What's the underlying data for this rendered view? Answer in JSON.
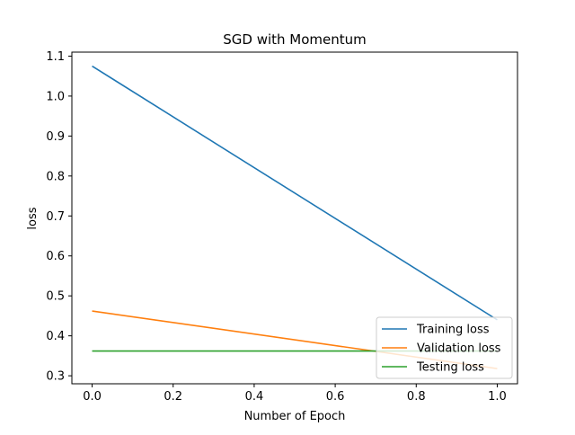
{
  "chart_data": {
    "type": "line",
    "title": "SGD with Momentum",
    "xlabel": "Number of Epoch",
    "ylabel": "loss",
    "xlim": [
      -0.05,
      1.05
    ],
    "ylim": [
      0.28,
      1.11
    ],
    "xticks": [
      0.0,
      0.2,
      0.4,
      0.6,
      0.8,
      1.0
    ],
    "xtick_labels": [
      "0.0",
      "0.2",
      "0.4",
      "0.6",
      "0.8",
      "1.0"
    ],
    "yticks": [
      0.3,
      0.4,
      0.5,
      0.6,
      0.7,
      0.8,
      0.9,
      1.0,
      1.1
    ],
    "ytick_labels": [
      "0.3",
      "0.4",
      "0.5",
      "0.6",
      "0.7",
      "0.8",
      "0.9",
      "1.0",
      "1.1"
    ],
    "grid": false,
    "legend_position": "lower-right",
    "x": [
      0,
      1
    ],
    "series": [
      {
        "name": "Training loss",
        "values": [
          1.075,
          0.44
        ],
        "color": "#1f77b4"
      },
      {
        "name": "Validation loss",
        "values": [
          0.462,
          0.318
        ],
        "color": "#ff7f0e"
      },
      {
        "name": "Testing loss",
        "values": [
          0.362,
          0.362
        ],
        "color": "#2ca02c"
      }
    ]
  }
}
